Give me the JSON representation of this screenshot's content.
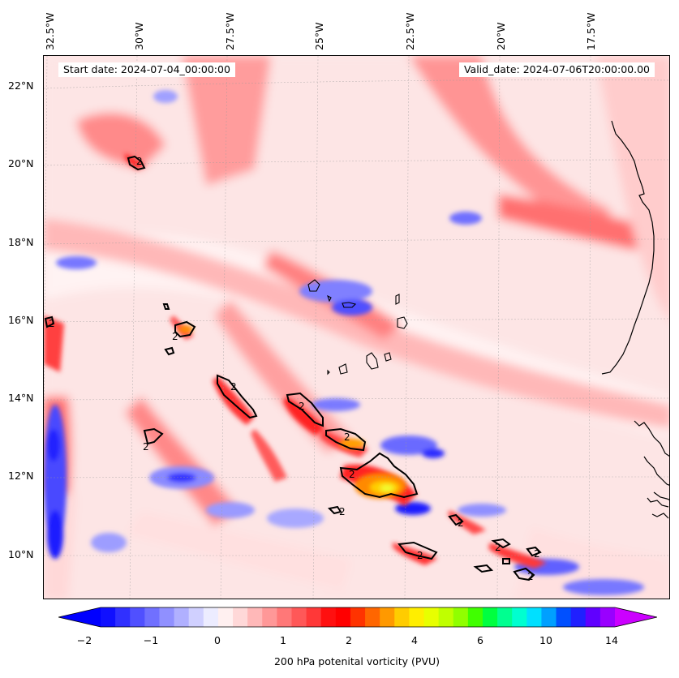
{
  "header": {
    "start_date": "Start date: 2024-07-04_00:00:00",
    "valid_date": "Valid_date: 2024-07-06T20:00:00.00"
  },
  "axes": {
    "lon_labels": [
      "32.5°W",
      "30°W",
      "27.5°W",
      "25°W",
      "22.5°W",
      "20°W",
      "17.5°W"
    ],
    "lat_labels": [
      "22°N",
      "20°N",
      "18°N",
      "16°N",
      "14°N",
      "12°N",
      "10°N"
    ]
  },
  "colorbar": {
    "tick_labels": [
      "−2",
      "−1",
      "0",
      "1",
      "2",
      "4",
      "6",
      "10",
      "14"
    ],
    "label": "200 hPa potenital vorticity (PVU)",
    "colors": [
      "#1010ff",
      "#3030ff",
      "#5050ff",
      "#7070ff",
      "#9090ff",
      "#b0b0ff",
      "#d0d0ff",
      "#ececff",
      "#fff0f0",
      "#ffd8d8",
      "#ffb8b8",
      "#ff9898",
      "#ff7878",
      "#ff5858",
      "#ff3838",
      "#ff1010",
      "#ff0000",
      "#ff3300",
      "#ff6600",
      "#ff9900",
      "#ffcc00",
      "#ffee00",
      "#e8ff00",
      "#c0ff00",
      "#90ff00",
      "#40ff00",
      "#00ff40",
      "#00ff90",
      "#00ffd0",
      "#00e0ff",
      "#00a0ff",
      "#0050ff",
      "#2020ff",
      "#6000ff",
      "#9900ff"
    ],
    "extend_low": "#0000ff",
    "extend_high": "#cc00ff"
  },
  "contour_label": "2"
}
